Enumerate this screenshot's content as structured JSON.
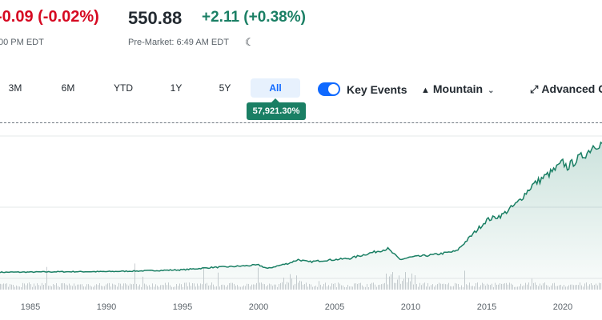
{
  "quote": {
    "prev_change": "-0.09 (-0.02%)",
    "premarket_price": "550.88",
    "premarket_change": "+2.11 (+0.38%)",
    "close_time": "00 PM EDT",
    "premarket_time": "Pre-Market: 6:49 AM EDT",
    "moon_icon": "☾"
  },
  "ranges": [
    {
      "label": "3M"
    },
    {
      "label": "6M"
    },
    {
      "label": "YTD"
    },
    {
      "label": "1Y"
    },
    {
      "label": "5Y"
    },
    {
      "label": "All",
      "active": true
    }
  ],
  "performance_badge": "57,921.30%",
  "key_events": {
    "label": "Key Events",
    "enabled": true
  },
  "chart_type_selector": {
    "label": "Mountain",
    "icon": "mountain-icon"
  },
  "advanced_button": {
    "label": "Advanced C",
    "icon": "expand-icon"
  },
  "colors": {
    "up": "#1a7f64",
    "down": "#d60a22",
    "accent": "#0f69ff",
    "line": "#1a7f64"
  },
  "chart_data": {
    "type": "area",
    "xaxis_ticks": [
      "1985",
      "1990",
      "1995",
      "2000",
      "2005",
      "2010",
      "2015",
      "2020"
    ],
    "x": [
      1983,
      1985,
      1987,
      1990,
      1992,
      1995,
      1997,
      1998,
      2000,
      2000.6,
      2001,
      2002,
      2002.6,
      2003.3,
      2004,
      2006,
      2007.5,
      2008.5,
      2009.3,
      2010,
      2011.5,
      2013,
      2014,
      2015,
      2016,
      2017,
      2018,
      2018.8,
      2019.5,
      2020,
      2020.3,
      2021,
      2021.6,
      2022,
      2022.6,
      2023
    ],
    "values": [
      2.5,
      2.6,
      2.9,
      3.0,
      3.5,
      4.5,
      6.5,
      7.0,
      8.5,
      5.5,
      7.0,
      10.0,
      13.0,
      11.0,
      12.0,
      14.0,
      19.0,
      22.0,
      13.0,
      15.0,
      17.0,
      20.0,
      33.0,
      46.0,
      50.0,
      60.0,
      75.0,
      82.0,
      88.0,
      94.0,
      90.0,
      97.0,
      102.0,
      108.0,
      110.0,
      104.0
    ],
    "volume_bars": true,
    "grid": true
  }
}
